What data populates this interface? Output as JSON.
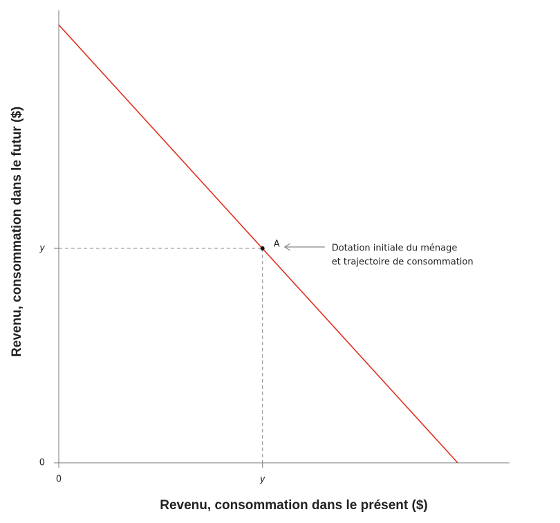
{
  "chart_data": {
    "type": "line",
    "xlabel": "Revenu, consommation dans le présent ($)",
    "ylabel": "Revenu, consommation dans le futur ($)",
    "xlim": [
      0,
      100
    ],
    "ylim": [
      0,
      100
    ],
    "xticks": [
      0,
      {
        "value": 45.2,
        "label": "y"
      }
    ],
    "yticks": [
      0,
      {
        "value": 47.4,
        "label": "y"
      }
    ],
    "series": [
      {
        "color": "#e0301e",
        "x": [
          0,
          88.5
        ],
        "values": [
          96.8,
          0
        ]
      }
    ],
    "annotations": [
      {
        "label": "A",
        "x": 45.2,
        "y": 47.4,
        "text": [
          "Dotation initiale du ménage",
          "et trajectoire de consommation"
        ]
      }
    ]
  }
}
